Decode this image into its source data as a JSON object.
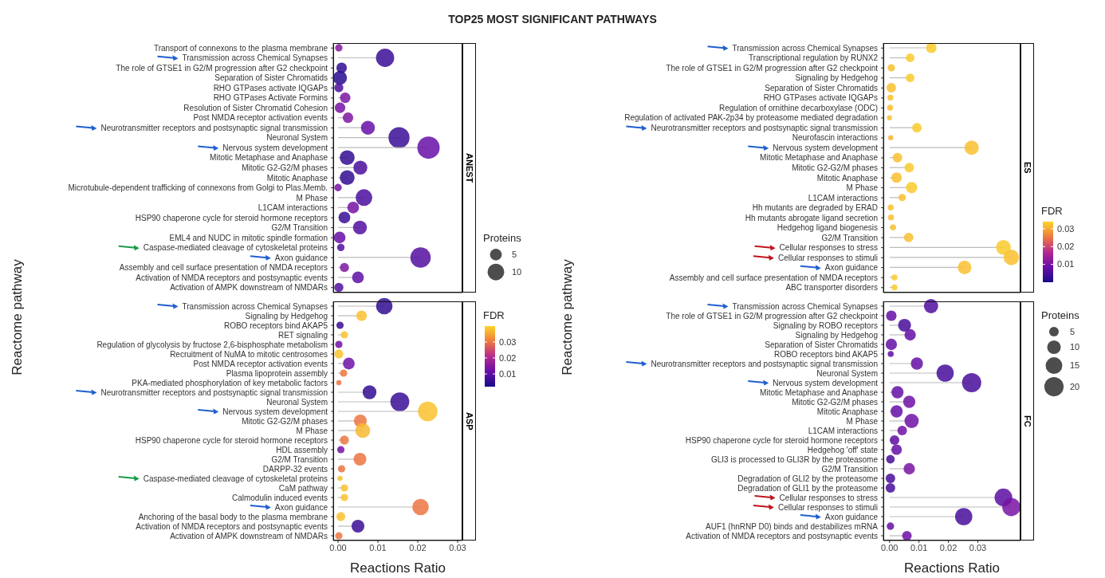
{
  "chart_data": [
    {
      "type": "lollipop",
      "orientation": "horizontal",
      "title": "TOP25 MOST SIGNIFICANT PATHWAYS",
      "subtitle": "ANEST",
      "ylabel": "Reactome pathway",
      "tick_labels": "y",
      "legend_title": "Proteins",
      "size_legend": [
        5,
        10
      ],
      "categories": [
        "Transport of connexons to the plasma membrane",
        "Transmission across Chemical Synapses",
        "The role of GTSE1 in G2/M progression after G2 checkpoint",
        "Separation of Sister Chromatids",
        "RHO GTPases activate IQGAPs",
        "RHO GTPases Activate Formins",
        "Resolution of Sister Chromatid Cohesion",
        "Post NMDA receptor activation events",
        "Neurotransmitter receptors and postsynaptic signal transmission",
        "Neuronal System",
        "Nervous system development",
        "Mitotic Metaphase and Anaphase",
        "Mitotic G2-G2/M phases",
        "Mitotic Anaphase",
        "Microtubule-dependent trafficking of connexons from Golgi to Plas.Memb.",
        "M Phase",
        "L1CAM interactions",
        "HSP90 chaperone cycle for steroid hormone receptors",
        "G2/M Transition",
        "EML4 and NUDC in mitotic spindle formation",
        "Caspase-mediated cleavage of cytoskeletal proteins",
        "Axon guidance",
        "Assembly and cell surface presentation of NMDA receptors",
        "Activation of NMDA receptors and postsynaptic events",
        "Activation of AMPK downstream of NMDARs"
      ],
      "values": [
        0.0002,
        0.0118,
        0.0009,
        0.0005,
        0.0002,
        0.0018,
        0.0005,
        0.0025,
        0.0075,
        0.0153,
        0.0227,
        0.0023,
        0.0056,
        0.0023,
        0.0,
        0.0065,
        0.0038,
        0.0016,
        0.0055,
        0.0004,
        0.0007,
        0.0207,
        0.0016,
        0.005,
        0.0002
      ],
      "sizes": [
        2,
        12,
        4,
        7,
        3,
        4,
        4,
        4,
        7,
        16,
        18,
        8,
        7,
        8,
        2,
        10,
        5,
        5,
        7,
        5,
        2,
        15,
        3,
        5,
        3
      ],
      "colors": [
        "#86199f",
        "#3a0d95",
        "#320c92",
        "#280c8f",
        "#4b0e9c",
        "#7e16a1",
        "#7613a4",
        "#7e16a1",
        "#660fa6",
        "#3a0d95",
        "#660fa6",
        "#320c92",
        "#4b0e9c",
        "#320c92",
        "#7613a4",
        "#4b0e9c",
        "#7613a4",
        "#3a0d95",
        "#540ea0",
        "#660fa6",
        "#540ea0",
        "#540ea0",
        "#7e16a1",
        "#5d0ea3",
        "#540ea0"
      ],
      "xlim": [
        -0.0012,
        0.0312
      ]
    },
    {
      "type": "lollipop",
      "orientation": "horizontal",
      "subtitle": "ASP",
      "xlabel": "Reactions Ratio",
      "clabel": "FDR",
      "clim": [
        0.002,
        0.04
      ],
      "cticks": [
        0.01,
        0.02,
        0.03
      ],
      "categories": [
        "Transmission across Chemical Synapses",
        "Signaling by Hedgehog",
        "ROBO receptors bind AKAP5",
        "RET signaling",
        "Regulation of glycolysis by fructose 2,6-bisphosphate metabolism",
        "Recruitment of NuMA to mitotic centrosomes",
        "Post NMDA receptor activation events",
        "Plasma lipoprotein assembly",
        "PKA-mediated phosphorylation of key metabolic factors",
        "Neurotransmitter receptors and postsynaptic signal transmission",
        "Neuronal System",
        "Nervous system development",
        "Mitotic G2-G2/M phases",
        "M Phase",
        "HSP90 chaperone cycle for steroid hormone receptors",
        "HDL assembly",
        "G2/M Transition",
        "DARPP-32 events",
        "Caspase-mediated cleavage of cytoskeletal proteins",
        "CaM pathway",
        "Calmodulin induced events",
        "Axon guidance",
        "Anchoring of the basal body to the plasma membrane",
        "Activation of NMDA receptors and postsynaptic events",
        "Activation of AMPK downstream of NMDARs"
      ],
      "values": [
        0.0116,
        0.0059,
        0.0005,
        0.0016,
        0.0002,
        0.0002,
        0.0027,
        0.0014,
        0.0002,
        0.0079,
        0.0155,
        0.0225,
        0.0056,
        0.0062,
        0.0016,
        0.0007,
        0.0055,
        0.0009,
        0.0005,
        0.0016,
        0.0016,
        0.0207,
        0.0007,
        0.005,
        0.0002
      ],
      "sizes": [
        0.71,
        0.29,
        0.14,
        0.14,
        0.14,
        0.21,
        0.36,
        0.14,
        0.07,
        0.5,
        0.93,
        1,
        0.43,
        0.57,
        0.21,
        0.14,
        0.43,
        0.14,
        0.07,
        0.14,
        0.14,
        0.71,
        0.21,
        0.43,
        0.14
      ],
      "cvalues": [
        0.005,
        0.038,
        0.006,
        0.038,
        0.012,
        0.038,
        0.012,
        0.03,
        0.03,
        0.005,
        0.006,
        0.038,
        0.03,
        0.037,
        0.03,
        0.013,
        0.03,
        0.03,
        0.038,
        0.038,
        0.038,
        0.03,
        0.038,
        0.006,
        0.03
      ],
      "xlim": [
        -0.0012,
        0.0312
      ],
      "xticks": [
        {
          "value": 0,
          "label": "0.00"
        },
        {
          "value": 0.01,
          "label": "0.01"
        },
        {
          "value": 0.02,
          "label": "0.02"
        },
        {
          "value": 0.03,
          "label": "0.03"
        }
      ]
    },
    {
      "type": "lollipop",
      "orientation": "horizontal",
      "subtitle": "ES",
      "ylabel": "Reactome pathway",
      "tick_labels": "y",
      "clabel": "FDR",
      "clim": [
        0.0,
        0.034
      ],
      "cticks": [
        0.01,
        0.02,
        0.03
      ],
      "categories": [
        "Transmission across Chemical Synapses",
        "Transcriptional regulation by RUNX2",
        "The role of GTSE1 in G2/M progression after G2 checkpoint",
        "Signaling by Hedgehog",
        "Separation of Sister Chromatids",
        "RHO GTPases activate IQGAPs",
        "Regulation of ornithine decarboxylase (ODC)",
        "Regulation of activated PAK-2p34 by proteasome mediated degradation",
        "Neurotransmitter receptors and postsynaptic signal transmission",
        "Neurofascin interactions",
        "Nervous system development",
        "Mitotic Metaphase and Anaphase",
        "Mitotic G2-G2/M phases",
        "Mitotic Anaphase",
        "M Phase",
        "L1CAM interactions",
        "Hh mutants are degraded by ERAD",
        "Hh mutants abrogate ligand secretion",
        "Hedgehog ligand biogenesis",
        "G2/M Transition",
        "Cellular responses to stress",
        "Cellular responses to stimuli",
        "Axon guidance",
        "Assembly and cell surface presentation of NMDA receptors",
        "ABC transporter disorders"
      ],
      "values": [
        0.0142,
        0.007,
        0.0006,
        0.007,
        0.0006,
        0.0003,
        0.0002,
        0.0,
        0.0093,
        0.0004,
        0.0279,
        0.0027,
        0.0067,
        0.0024,
        0.0075,
        0.0043,
        0.0004,
        0.0005,
        0.0012,
        0.0065,
        0.0387,
        0.0414,
        0.0255,
        0.0017,
        0.0017
      ],
      "sizes": [
        0.46,
        0.31,
        0.23,
        0.31,
        0.38,
        0.15,
        0.15,
        0.08,
        0.38,
        0.08,
        0.85,
        0.38,
        0.38,
        0.46,
        0.54,
        0.23,
        0.15,
        0.15,
        0.15,
        0.38,
        0.92,
        1,
        0.77,
        0.15,
        0.15
      ],
      "cvalues": [
        0.033,
        0.033,
        0.032,
        0.033,
        0.032,
        0.032,
        0.032,
        0.032,
        0.033,
        0.031,
        0.032,
        0.032,
        0.033,
        0.032,
        0.033,
        0.032,
        0.032,
        0.032,
        0.032,
        0.032,
        0.033,
        0.032,
        0.032,
        0.033,
        0.033
      ],
      "xlim": [
        -0.0021,
        0.0445
      ]
    },
    {
      "type": "lollipop",
      "orientation": "horizontal",
      "subtitle": "FC",
      "xlabel": "Reactions Ratio",
      "legend_title": "Proteins",
      "size_legend": [
        5,
        10,
        15,
        20
      ],
      "categories": [
        "Transmission across Chemical Synapses",
        "The role of GTSE1 in G2/M progression after G2 checkpoint",
        "Signaling by ROBO receptors",
        "Signaling by Hedgehog",
        "Separation of Sister Chromatids",
        "ROBO receptors bind AKAP5",
        "Neurotransmitter receptors and postsynaptic signal transmission",
        "Neuronal System",
        "Nervous system development",
        "Mitotic Metaphase and Anaphase",
        "Mitotic G2-G2/M phases",
        "Mitotic Anaphase",
        "M Phase",
        "L1CAM interactions",
        "HSP90 chaperone cycle for steroid hormone receptors",
        "Hedgehog 'off' state",
        "GLI3 is processed to GLI3R by the proteasome",
        "G2/M Transition",
        "Degradation of GLI2 by the proteasome",
        "Degradation of GLI1 by the proteasome",
        "Cellular responses to stress",
        "Cellular responses to stimuli",
        "Axon guidance",
        "AUF1 (hnRNP D0) binds and destabilizes mRNA",
        "Activation of NMDA receptors and postsynaptic events"
      ],
      "values": [
        0.0141,
        0.0006,
        0.0051,
        0.007,
        0.0006,
        0.0004,
        0.0093,
        0.0189,
        0.0279,
        0.0027,
        0.0067,
        0.0024,
        0.0075,
        0.0043,
        0.0017,
        0.0024,
        0.0003,
        0.0067,
        0.0003,
        0.0003,
        0.0387,
        0.0414,
        0.0252,
        0.0003,
        0.0059
      ],
      "sizes": [
        11,
        6,
        9,
        7,
        7,
        2,
        8,
        16,
        20,
        8,
        8,
        8,
        11,
        5,
        5,
        6,
        4,
        7,
        5,
        5,
        17,
        18,
        16,
        3,
        5
      ],
      "colors": [
        "#520e9f",
        "#650fa6",
        "#480d9b",
        "#650fa6",
        "#650fa6",
        "#650fa6",
        "#650fa6",
        "#480d9b",
        "#480d9b",
        "#650fa6",
        "#6f11a6",
        "#650fa6",
        "#6f11a6",
        "#6f11a6",
        "#5b0ea2",
        "#650fa6",
        "#480d9b",
        "#7814a3",
        "#480d9b",
        "#480d9b",
        "#5b0ea2",
        "#7814a3",
        "#480d9b",
        "#650fa6",
        "#6f11a6"
      ],
      "xlim": [
        -0.0021,
        0.0445
      ],
      "xticks": [
        {
          "value": 0,
          "label": "0.00"
        },
        {
          "value": 0.01,
          "label": "0.01"
        },
        {
          "value": 0.02,
          "label": "0.02"
        },
        {
          "value": 0.03,
          "label": "0.03"
        }
      ]
    }
  ]
}
